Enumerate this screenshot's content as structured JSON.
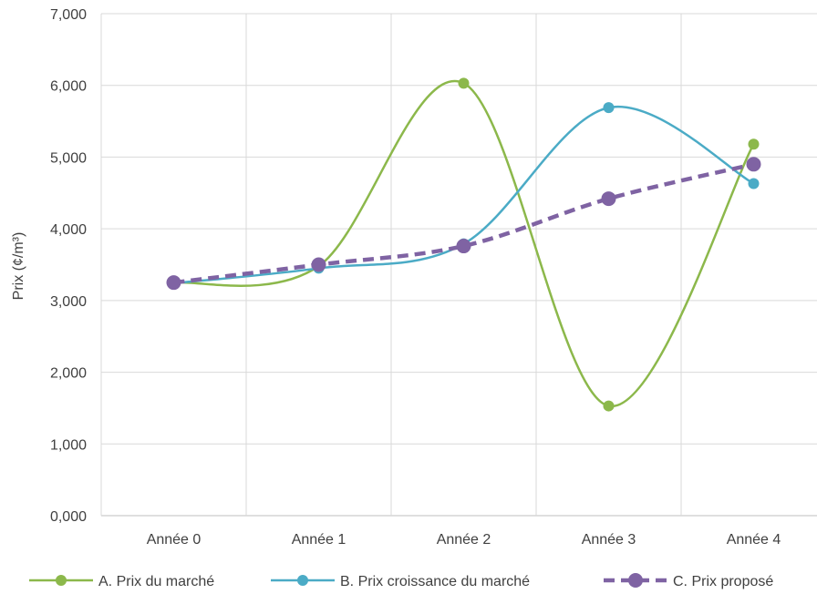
{
  "chart_data": {
    "type": "line",
    "title": "",
    "xlabel": "",
    "ylabel": "Prix (¢/m³)",
    "categories": [
      "Année 0",
      "Année 1",
      "Année 2",
      "Année 3",
      "Année 4"
    ],
    "ylim": [
      0,
      7000
    ],
    "yticks": [
      "0,000",
      "1,000",
      "2,000",
      "3,000",
      "4,000",
      "5,000",
      "6,000",
      "7,000"
    ],
    "grid": true,
    "smooth": true,
    "legend_position": "bottom",
    "series": [
      {
        "name": "A. Prix du marché",
        "values": [
          3250,
          3480,
          6030,
          1530,
          5180
        ],
        "color": "#8cb84b",
        "dashed": false
      },
      {
        "name": "B. Prix croissance du marché",
        "values": [
          3240,
          3450,
          3790,
          5690,
          4630
        ],
        "color": "#4babc6",
        "dashed": false
      },
      {
        "name": "C. Prix proposé",
        "values": [
          3250,
          3500,
          3760,
          4420,
          4900
        ],
        "color": "#7f63a3",
        "dashed": true
      }
    ]
  }
}
